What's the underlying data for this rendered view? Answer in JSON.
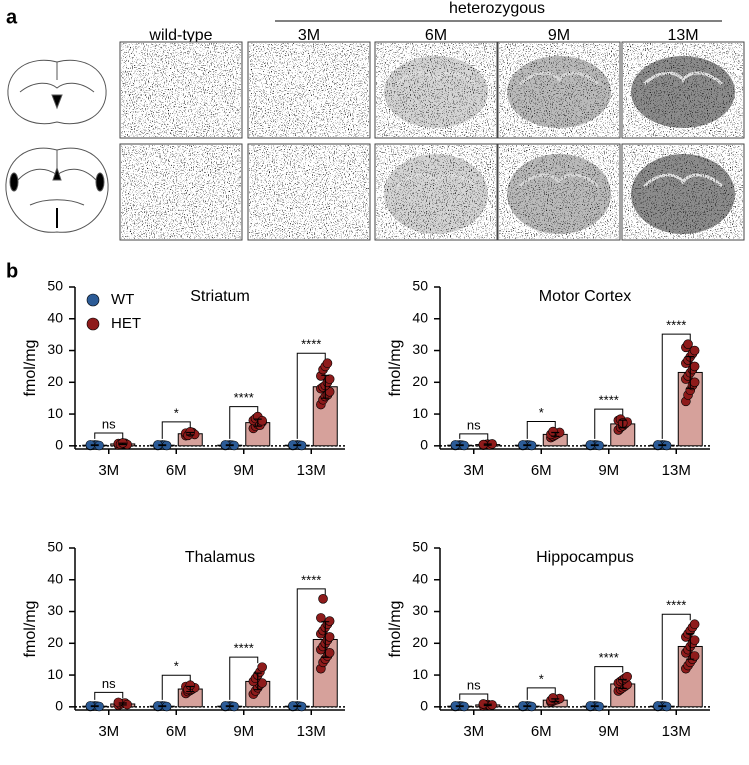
{
  "panel_labels": [
    "a",
    "b"
  ],
  "panel_a": {
    "wild_type": "wild-type",
    "heterozygous": "heterozygous",
    "ages": [
      "3M",
      "6M",
      "9M",
      "13M"
    ]
  },
  "chart_data": [
    {
      "type": "bar",
      "title": "Striatum",
      "ylabel": "fmol/mg",
      "categories": [
        "3M",
        "6M",
        "9M",
        "13M"
      ],
      "ylim": [
        -1,
        50
      ],
      "yticks": [
        0,
        10,
        20,
        30,
        40,
        50
      ],
      "hline": 0,
      "legend": "upper left",
      "annotations": [
        "ns",
        "*",
        "****",
        "****"
      ],
      "series": [
        {
          "name": "WT",
          "color": "#2c5b96",
          "bar_color": "#8fa9c8",
          "values": [
            0.2,
            0.2,
            0.2,
            0.2
          ],
          "errors": [
            0.1,
            0.1,
            0.1,
            0.1
          ],
          "points": [
            [
              0.1,
              0.2,
              0.3,
              0.2,
              0.1,
              0.3
            ],
            [
              0.1,
              0.2,
              0.3,
              0.2,
              0.1,
              0.3
            ],
            [
              0.1,
              0.2,
              0.3,
              0.2,
              0.1,
              0.3
            ],
            [
              0.1,
              0.2,
              0.3,
              0.2,
              0.1,
              0.3
            ]
          ]
        },
        {
          "name": "HET",
          "color": "#8e1b1b",
          "bar_color": "#d6a19b",
          "values": [
            0.6,
            3.8,
            7.3,
            18.6
          ],
          "errors": [
            0.2,
            0.4,
            1.1,
            3.6
          ],
          "points": [
            [
              0.3,
              0.5,
              0.6,
              0.8,
              0.4,
              0.7,
              0.5,
              0.9
            ],
            [
              3.2,
              3.5,
              3.9,
              4.2,
              3.6,
              4.0,
              3.3,
              4.4
            ],
            [
              5.5,
              6.2,
              6.8,
              7.1,
              7.5,
              8.0,
              8.6,
              9.2,
              6.5,
              7.9
            ],
            [
              13,
              14.5,
              15.5,
              16,
              17,
              18,
              18.5,
              19,
              20,
              21,
              22,
              24,
              25,
              26
            ]
          ]
        }
      ]
    },
    {
      "type": "bar",
      "title": "Motor Cortex",
      "ylabel": "fmol/mg",
      "categories": [
        "3M",
        "6M",
        "9M",
        "13M"
      ],
      "ylim": [
        -1,
        50
      ],
      "yticks": [
        0,
        10,
        20,
        30,
        40,
        50
      ],
      "hline": 0,
      "annotations": [
        "ns",
        "*",
        "****",
        "****"
      ],
      "series": [
        {
          "color": "#2c5b96",
          "bar_color": "#8fa9c8",
          "values": [
            0.2,
            0.2,
            0.2,
            0.2
          ],
          "errors": [
            0.1,
            0.1,
            0.1,
            0.1
          ],
          "points": [
            [
              0.1,
              0.2,
              0.3,
              0.2,
              0.1,
              0.3
            ],
            [
              0.1,
              0.2,
              0.3,
              0.2,
              0.1,
              0.3
            ],
            [
              0.1,
              0.2,
              0.3,
              0.2,
              0.1,
              0.3
            ],
            [
              0.1,
              0.2,
              0.3,
              0.2,
              0.1,
              0.3
            ]
          ]
        },
        {
          "color": "#8e1b1b",
          "bar_color": "#d6a19b",
          "values": [
            0.4,
            3.6,
            6.9,
            23.1
          ],
          "errors": [
            0.2,
            0.6,
            1.2,
            5
          ],
          "points": [
            [
              0.2,
              0.4,
              0.5,
              0.3,
              0.6,
              0.4
            ],
            [
              2.6,
              3,
              3.4,
              3.8,
              4.2,
              3.6,
              4.5
            ],
            [
              5,
              5.8,
              6.3,
              6.9,
              7.5,
              8,
              8.4,
              7.2
            ],
            [
              14,
              16,
              17.5,
              19,
              20,
              21,
              22,
              23,
              24,
              25,
              26,
              27,
              28,
              29,
              30,
              31,
              32
            ]
          ]
        }
      ]
    },
    {
      "type": "bar",
      "title": "Thalamus",
      "ylabel": "fmol/mg",
      "categories": [
        "3M",
        "6M",
        "9M",
        "13M"
      ],
      "ylim": [
        -1,
        50
      ],
      "yticks": [
        0,
        10,
        20,
        30,
        40,
        50
      ],
      "hline": 0,
      "annotations": [
        "ns",
        "*",
        "****",
        "****"
      ],
      "series": [
        {
          "color": "#2c5b96",
          "bar_color": "#8fa9c8",
          "values": [
            0.2,
            0.2,
            0.2,
            0.2
          ],
          "errors": [
            0.1,
            0.1,
            0.1,
            0.1
          ],
          "points": [
            [
              0.1,
              0.2,
              0.3,
              0.2,
              0.1,
              0.3
            ],
            [
              0.1,
              0.2,
              0.3,
              0.2,
              0.1,
              0.3
            ],
            [
              0.1,
              0.2,
              0.3,
              0.2,
              0.1,
              0.3
            ],
            [
              0.1,
              0.2,
              0.3,
              0.2,
              0.1,
              0.3
            ]
          ]
        },
        {
          "color": "#8e1b1b",
          "bar_color": "#d6a19b",
          "values": [
            0.9,
            5.6,
            8,
            21.2
          ],
          "errors": [
            0.3,
            0.8,
            2.6,
            5.6
          ],
          "points": [
            [
              0.5,
              0.8,
              1,
              1.2,
              0.7,
              1.4
            ],
            [
              4.2,
              4.8,
              5.2,
              5.6,
              6,
              6.4,
              5.5,
              6.8
            ],
            [
              4,
              5,
              6,
              7,
              7.5,
              8,
              9,
              10,
              11,
              12.5
            ],
            [
              12,
              14,
              15,
              16,
              17,
              18,
              19,
              20,
              21,
              22,
              23,
              24,
              25,
              26,
              27,
              28,
              34
            ]
          ]
        }
      ]
    },
    {
      "type": "bar",
      "title": "Hippocampus",
      "ylabel": "fmol/mg",
      "categories": [
        "3M",
        "6M",
        "9M",
        "13M"
      ],
      "ylim": [
        -1,
        50
      ],
      "yticks": [
        0,
        10,
        20,
        30,
        40,
        50
      ],
      "hline": 0,
      "annotations": [
        "ns",
        "*",
        "****",
        "****"
      ],
      "series": [
        {
          "color": "#2c5b96",
          "bar_color": "#8fa9c8",
          "values": [
            0.2,
            0.2,
            0.2,
            0.2
          ],
          "errors": [
            0.1,
            0.1,
            0.1,
            0.1
          ],
          "points": [
            [
              0.1,
              0.2,
              0.3,
              0.2,
              0.1,
              0.3
            ],
            [
              0.1,
              0.2,
              0.3,
              0.2,
              0.1,
              0.3
            ],
            [
              0.1,
              0.2,
              0.3,
              0.2,
              0.1,
              0.3
            ],
            [
              0.1,
              0.2,
              0.3,
              0.2,
              0.1,
              0.3
            ]
          ]
        },
        {
          "color": "#8e1b1b",
          "bar_color": "#d6a19b",
          "values": [
            0.6,
            2.1,
            7.2,
            19
          ],
          "errors": [
            0.2,
            0.4,
            1.4,
            4
          ],
          "points": [
            [
              0.3,
              0.5,
              0.7,
              0.4,
              0.6,
              0.9
            ],
            [
              1.5,
              1.8,
              2.1,
              2.3,
              2.6,
              2,
              2.8
            ],
            [
              5,
              5.5,
              6,
              6.5,
              7,
              7.5,
              8,
              8.5,
              9,
              9.5
            ],
            [
              12,
              13,
              14,
              15,
              16,
              17,
              18,
              19,
              20,
              21,
              22,
              23,
              24,
              25,
              26
            ]
          ]
        }
      ]
    }
  ]
}
